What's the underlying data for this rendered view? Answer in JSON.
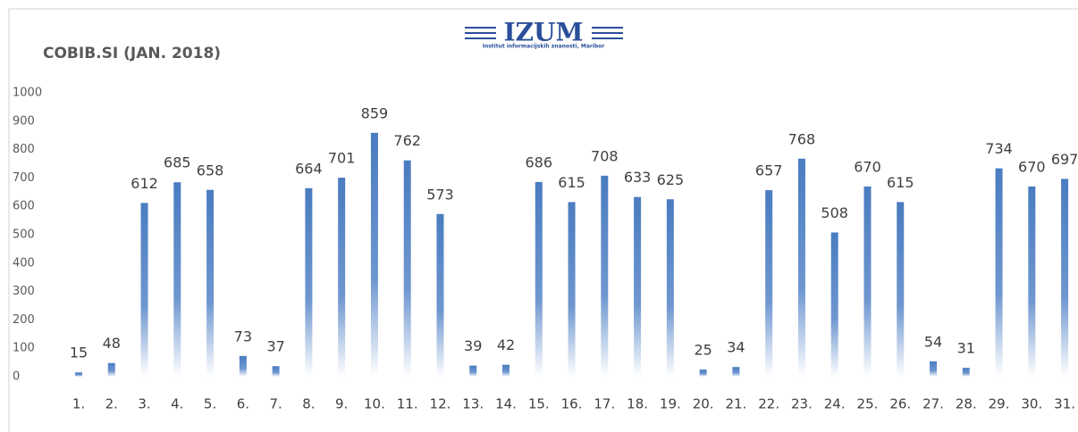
{
  "logo": {
    "name": "IZUM",
    "subtitle": "Institut informacijskih znanosti, Maribor"
  },
  "chart_data": {
    "type": "bar",
    "title": "COBIB.SI (JAN. 2018)",
    "categories": [
      "1.",
      "2.",
      "3.",
      "4.",
      "5.",
      "6.",
      "7.",
      "8.",
      "9.",
      "10.",
      "11.",
      "12.",
      "13.",
      "14.",
      "15.",
      "16.",
      "17.",
      "18.",
      "19.",
      "20.",
      "21.",
      "22.",
      "23.",
      "24.",
      "25.",
      "26.",
      "27.",
      "28.",
      "29.",
      "30.",
      "31."
    ],
    "values": [
      15,
      48,
      612,
      685,
      658,
      73,
      37,
      664,
      701,
      859,
      762,
      573,
      39,
      42,
      686,
      615,
      708,
      633,
      625,
      25,
      34,
      657,
      768,
      508,
      670,
      615,
      54,
      31,
      734,
      670,
      697
    ],
    "color": "#4a7cc0",
    "ylim": [
      0,
      1000
    ],
    "yticks": [
      0,
      100,
      200,
      300,
      400,
      500,
      600,
      700,
      800,
      900,
      1000
    ],
    "grid": false
  }
}
